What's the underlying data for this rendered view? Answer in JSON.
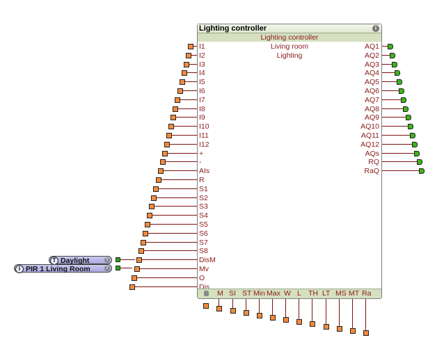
{
  "block": {
    "title": "Lighting controller",
    "subtitle": "Lighting controller",
    "lines": [
      "Living room",
      "Lighting"
    ],
    "info_icon": "info-icon",
    "left_pins": [
      "I1",
      "I2",
      "I3",
      "I4",
      "I5",
      "I6",
      "I7",
      "I8",
      "I9",
      "I10",
      "I11",
      "I12",
      "+",
      "-",
      "AIs",
      "R",
      "S1",
      "S2",
      "S3",
      "S4",
      "S5",
      "S6",
      "S7",
      "S8",
      "DisM",
      "Mv",
      "O",
      "Dis"
    ],
    "right_pins": [
      "AQ1",
      "AQ2",
      "AQ3",
      "AQ4",
      "AQ5",
      "AQ6",
      "AQ7",
      "AQ8",
      "AQ9",
      "AQ10",
      "AQ11",
      "AQ12",
      "AQs",
      "RQ",
      "RaQ"
    ],
    "bottom_pins": [
      "M",
      "SI",
      "ST",
      "Min",
      "Max",
      "W",
      "L",
      "TH",
      "LT",
      "MS",
      "MT",
      "Ra"
    ],
    "bottom_icon": "parameter-icon"
  },
  "sources": [
    {
      "type": "T",
      "label": "Daylight",
      "connects_to": "DisM"
    },
    {
      "type": "I",
      "label": "PIR 1 Living Room",
      "connects_to": "Mv"
    }
  ],
  "colors": {
    "wire": "#7a1010",
    "input_connector": "#f58a3b",
    "output_connector": "#3cb31a",
    "header_green": "#d5e0c0",
    "pin_text": "#8b1a1a",
    "source_fill": "#b9b9e8"
  }
}
